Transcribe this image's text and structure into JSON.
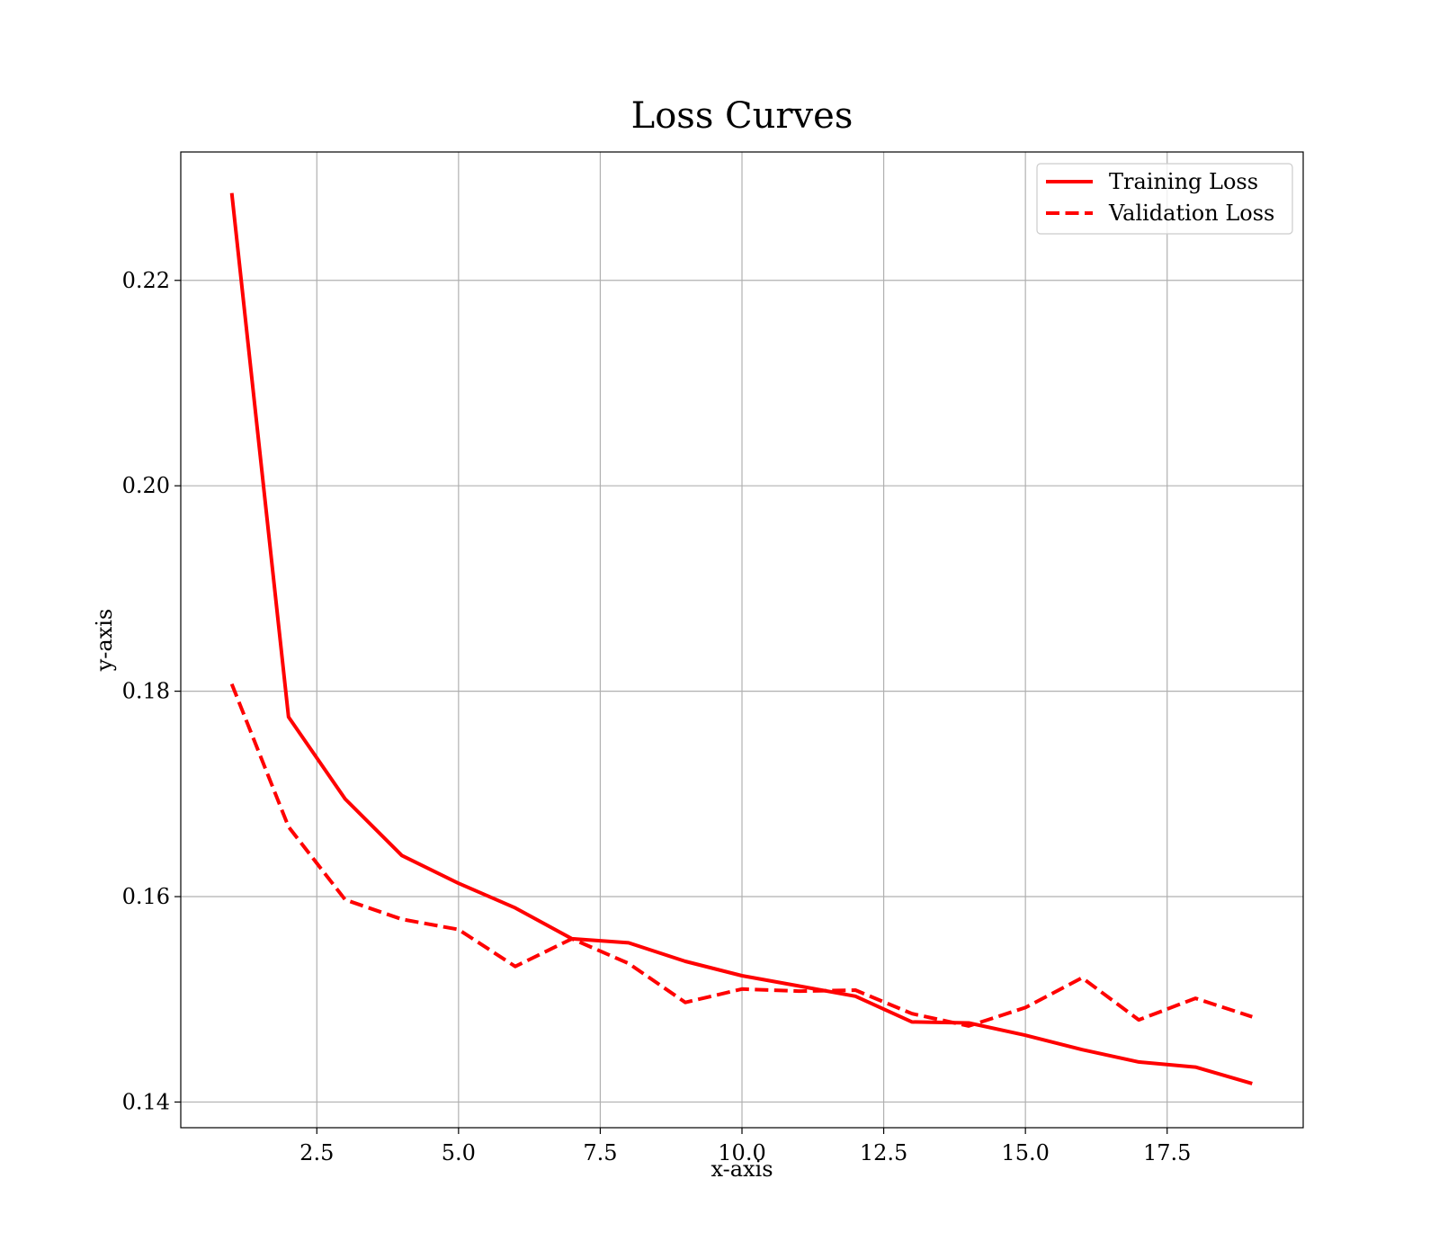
{
  "chart_data": {
    "type": "line",
    "title": "Loss Curves",
    "xlabel": "x-axis",
    "ylabel": "y-axis",
    "xlim": [
      0.1,
      19.9
    ],
    "ylim": [
      0.1375,
      0.2325
    ],
    "x_ticks": [
      2.5,
      5.0,
      7.5,
      10.0,
      12.5,
      15.0,
      17.5
    ],
    "x_tick_labels": [
      "2.5",
      "5.0",
      "7.5",
      "10.0",
      "12.5",
      "15.0",
      "17.5"
    ],
    "y_ticks": [
      0.14,
      0.16,
      0.18,
      0.2,
      0.22
    ],
    "y_tick_labels": [
      "0.14",
      "0.16",
      "0.18",
      "0.20",
      "0.22"
    ],
    "grid": true,
    "legend_position": "top-right",
    "x": [
      1,
      2,
      3,
      4,
      5,
      6,
      7,
      8,
      9,
      10,
      11,
      12,
      13,
      14,
      15,
      16,
      17,
      18,
      19
    ],
    "series": [
      {
        "name": "Training Loss",
        "color": "#ff0000",
        "style": "solid",
        "values": [
          0.2285,
          0.1775,
          0.1695,
          0.164,
          0.1613,
          0.1589,
          0.1559,
          0.1555,
          0.1537,
          0.1523,
          0.1513,
          0.1503,
          0.1478,
          0.1477,
          0.1465,
          0.1451,
          0.1439,
          0.1434,
          0.1418
        ]
      },
      {
        "name": "Validation Loss",
        "color": "#ff0000",
        "style": "dashed",
        "values": [
          0.1807,
          0.1668,
          0.1597,
          0.1578,
          0.1568,
          0.1532,
          0.1559,
          0.1535,
          0.1497,
          0.151,
          0.1508,
          0.1509,
          0.1486,
          0.1474,
          0.1492,
          0.1521,
          0.148,
          0.1501,
          0.1483
        ]
      }
    ]
  }
}
